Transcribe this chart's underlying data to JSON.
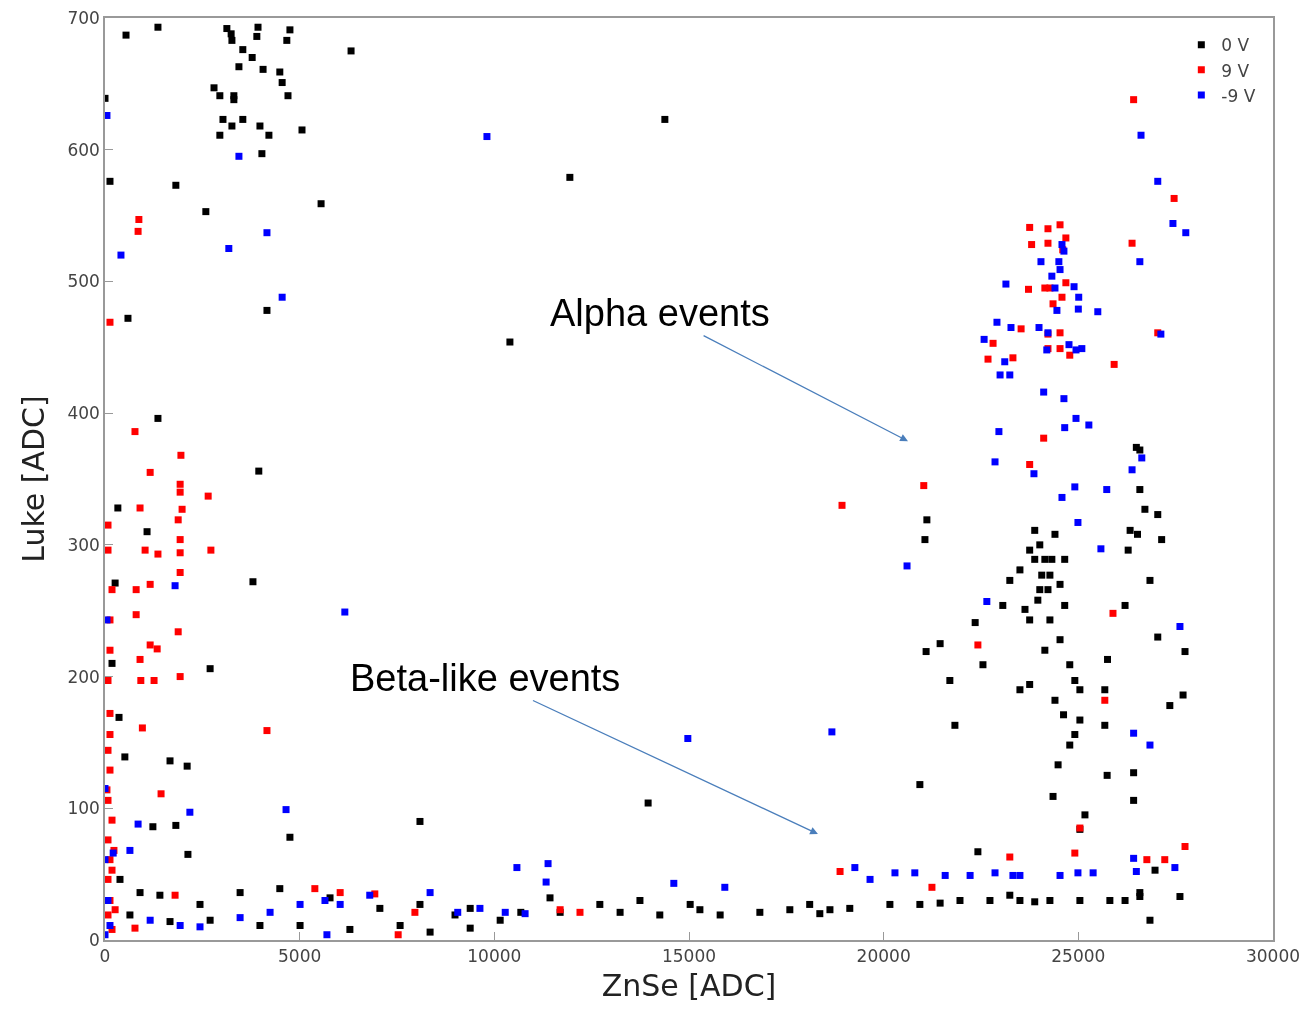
{
  "chart_data": {
    "type": "scatter",
    "xlabel": "ZnSe [ADC]",
    "ylabel": "Luke [ADC]",
    "xlim": [
      0,
      30000
    ],
    "ylim": [
      0,
      700
    ],
    "xticks": [
      0,
      5000,
      10000,
      15000,
      20000,
      25000,
      30000
    ],
    "yticks": [
      0,
      100,
      200,
      300,
      400,
      500,
      600,
      700
    ],
    "grid": false,
    "legend": "top right",
    "marker": "square",
    "annotations": [
      "Alpha events",
      "Beta-like events"
    ],
    "series": [
      {
        "name": "0 V",
        "color": "#000000",
        "x": [
          0,
          128,
          540,
          1360,
          590,
          1820,
          2590,
          3130,
          3240,
          3260,
          3930,
          3900,
          3540,
          3780,
          3440,
          4060,
          4490,
          4550,
          4700,
          4670,
          4750,
          2800,
          2950,
          3310,
          3310,
          3030,
          3260,
          3540,
          2950,
          3980,
          4210,
          5060,
          4030,
          5550,
          6320,
          14380,
          11940,
          10400,
          4160,
          3950,
          1360,
          330,
          1080,
          3800,
          260,
          180,
          2700,
          360,
          510,
          1670,
          2110,
          1820,
          2130,
          4750,
          8090,
          13950,
          1230,
          385,
          900,
          1410,
          2440,
          3470,
          4490,
          5780,
          7060,
          8090,
          8990,
          9380,
          10150,
          10680,
          11430,
          11690,
          12710,
          13230,
          13740,
          14250,
          15030,
          15280,
          15800,
          16820,
          17590,
          18100,
          18360,
          18620,
          19130,
          20160,
          20930,
          21450,
          21960,
          22730,
          23240,
          23500,
          23880,
          24270,
          25040,
          25810,
          26200,
          26580,
          26840,
          27610,
          26970,
          26580,
          640,
          1670,
          2700,
          3980,
          5010,
          6290,
          7580,
          8350,
          9380,
          22420,
          20930,
          21060,
          21110,
          21090,
          21450,
          21700,
          21830,
          22350,
          22550,
          23060,
          23240,
          23500,
          23630,
          23750,
          23880,
          24010,
          24140,
          24270,
          24400,
          24530,
          24650,
          24010,
          23750,
          24270,
          24140,
          23500,
          23750,
          24400,
          24530,
          24650,
          24780,
          24910,
          24620,
          24780,
          24910,
          25040,
          25040,
          24480,
          24350,
          25170,
          25040,
          25680,
          25750,
          25680,
          25740,
          26420,
          26420,
          26200,
          26280,
          26330,
          26580,
          26580,
          26710,
          26840,
          27040,
          27140,
          27040,
          27350,
          27690,
          27740,
          26520,
          26490,
          23880,
          24060,
          24220,
          24320,
          23960
        ],
        "values": [
          639,
          576,
          687,
          693,
          472,
          573,
          553,
          692,
          688,
          683,
          693,
          686,
          676,
          670,
          663,
          661,
          659,
          651,
          641,
          683,
          691,
          647,
          641,
          641,
          638,
          623,
          618,
          623,
          611,
          618,
          611,
          615,
          597,
          559,
          675,
          623,
          579,
          454,
          478,
          356,
          396,
          328,
          310,
          272,
          271,
          210,
          206,
          169,
          139,
          136,
          132,
          87,
          65,
          78,
          90,
          104,
          86,
          46,
          36,
          34,
          27,
          36,
          39,
          32,
          24,
          27,
          19,
          24,
          15,
          21,
          32,
          21,
          27,
          21,
          30,
          19,
          27,
          23,
          19,
          21,
          23,
          27,
          20,
          23,
          24,
          27,
          27,
          28,
          30,
          30,
          34,
          30,
          29,
          30,
          30,
          30,
          30,
          33,
          15,
          33,
          53,
          36,
          19,
          14,
          15,
          11,
          11,
          8,
          11,
          6,
          9,
          67,
          118,
          304,
          319,
          219,
          225,
          197,
          163,
          241,
          209,
          254,
          273,
          281,
          251,
          296,
          311,
          300,
          289,
          277,
          308,
          270,
          289,
          266,
          243,
          243,
          220,
          190,
          194,
          182,
          228,
          254,
          209,
          197,
          171,
          148,
          156,
          190,
          167,
          133,
          109,
          95,
          84,
          190,
          213,
          163,
          125,
          127,
          106,
          254,
          296,
          311,
          372,
          342,
          327,
          273,
          323,
          304,
          230,
          178,
          186,
          219,
          308,
          374,
          289,
          277,
          266,
          289,
          258
        ]
      },
      {
        "name": "9 V",
        "color": "#ff0000",
        "x": [
          128,
          77,
          77,
          180,
          128,
          128,
          77,
          128,
          77,
          128,
          77,
          180,
          77,
          128,
          77,
          128,
          77,
          180,
          128,
          50,
          230,
          180,
          260,
          870,
          850,
          770,
          1160,
          1950,
          1930,
          1930,
          1980,
          1880,
          2650,
          900,
          1030,
          1360,
          1930,
          1930,
          1930,
          2720,
          800,
          1160,
          800,
          1160,
          1880,
          1340,
          900,
          920,
          1260,
          1930,
          960,
          4160,
          1440,
          1800,
          770,
          5390,
          6040,
          6930,
          7530,
          7960,
          11690,
          12200,
          18930,
          21030,
          22420,
          25890,
          25680,
          25040,
          24910,
          23240,
          21240,
          18880,
          26760,
          27220,
          27740,
          23750,
          24530,
          24220,
          24680,
          23800,
          24220,
          24600,
          23720,
          24140,
          24270,
          24580,
          24680,
          24350,
          23530,
          22680,
          22810,
          24220,
          24530,
          24530,
          24220,
          24780,
          23320,
          24110,
          25920,
          23750,
          26380,
          26420,
          27460,
          27040
        ],
        "values": [
          469,
          296,
          315,
          266,
          243,
          220,
          197,
          172,
          144,
          129,
          106,
          91,
          76,
          61,
          46,
          30,
          19,
          8,
          156,
          114,
          68,
          53,
          23,
          547,
          538,
          386,
          355,
          368,
          346,
          340,
          327,
          319,
          337,
          328,
          296,
          293,
          304,
          294,
          279,
          296,
          266,
          270,
          247,
          224,
          234,
          221,
          213,
          197,
          197,
          200,
          161,
          159,
          111,
          34,
          9,
          39,
          36,
          35,
          4,
          21,
          23,
          21,
          330,
          345,
          224,
          248,
          182,
          85,
          66,
          63,
          40,
          52,
          61,
          61,
          71,
          541,
          543,
          540,
          533,
          528,
          529,
          524,
          494,
          495,
          495,
          488,
          499,
          483,
          464,
          441,
          453,
          460,
          461,
          449,
          449,
          444,
          442,
          381,
          437,
          361,
          529,
          638,
          563,
          461
        ]
      },
      {
        "name": "-9 V",
        "color": "#0000ff",
        "x": [
          50,
          50,
          0,
          0,
          77,
          128,
          0,
          410,
          3180,
          3440,
          4160,
          4550,
          1800,
          6160,
          2180,
          4650,
          850,
          640,
          210,
          1160,
          1930,
          2440,
          3470,
          4240,
          5010,
          5650,
          5700,
          6040,
          6800,
          8350,
          9060,
          9630,
          10280,
          10580,
          11380,
          11330,
          10790,
          9810,
          14970,
          14610,
          15920,
          18670,
          19260,
          19650,
          20290,
          20600,
          20800,
          21580,
          22220,
          22860,
          23320,
          23500,
          24530,
          24990,
          25380,
          26420,
          26490,
          27480,
          24580,
          24630,
          24040,
          24500,
          24530,
          24320,
          23140,
          24400,
          24890,
          25010,
          25500,
          25000,
          24450,
          23270,
          22910,
          24220,
          22580,
          24190,
          24940,
          25090,
          24760,
          23990,
          23110,
          23240,
          22990,
          24110,
          24630,
          24940,
          25270,
          24650,
          22960,
          22860,
          24580,
          24910,
          24990,
          23860,
          22650,
          26610,
          26580,
          27120,
          27760,
          27040,
          27430,
          26380,
          26630,
          26420,
          26840,
          27610,
          25580,
          25730
        ],
        "values": [
          626,
          243,
          115,
          61,
          30,
          11,
          4,
          520,
          525,
          595,
          537,
          488,
          269,
          249,
          97,
          99,
          88,
          68,
          66,
          15,
          11,
          10,
          17,
          21,
          27,
          30,
          4,
          27,
          34,
          36,
          21,
          24,
          21,
          55,
          58,
          44,
          20,
          610,
          153,
          43,
          40,
          158,
          55,
          46,
          51,
          284,
          51,
          49,
          49,
          51,
          49,
          49,
          49,
          51,
          51,
          62,
          52,
          55,
          528,
          523,
          515,
          515,
          509,
          504,
          498,
          495,
          496,
          488,
          477,
          479,
          478,
          465,
          469,
          461,
          456,
          448,
          448,
          449,
          452,
          465,
          439,
          429,
          429,
          416,
          411,
          396,
          391,
          389,
          386,
          363,
          336,
          344,
          317,
          354,
          257,
          611,
          515,
          460,
          537,
          576,
          544,
          357,
          366,
          157,
          148,
          238,
          297,
          342
        ]
      }
    ]
  }
}
